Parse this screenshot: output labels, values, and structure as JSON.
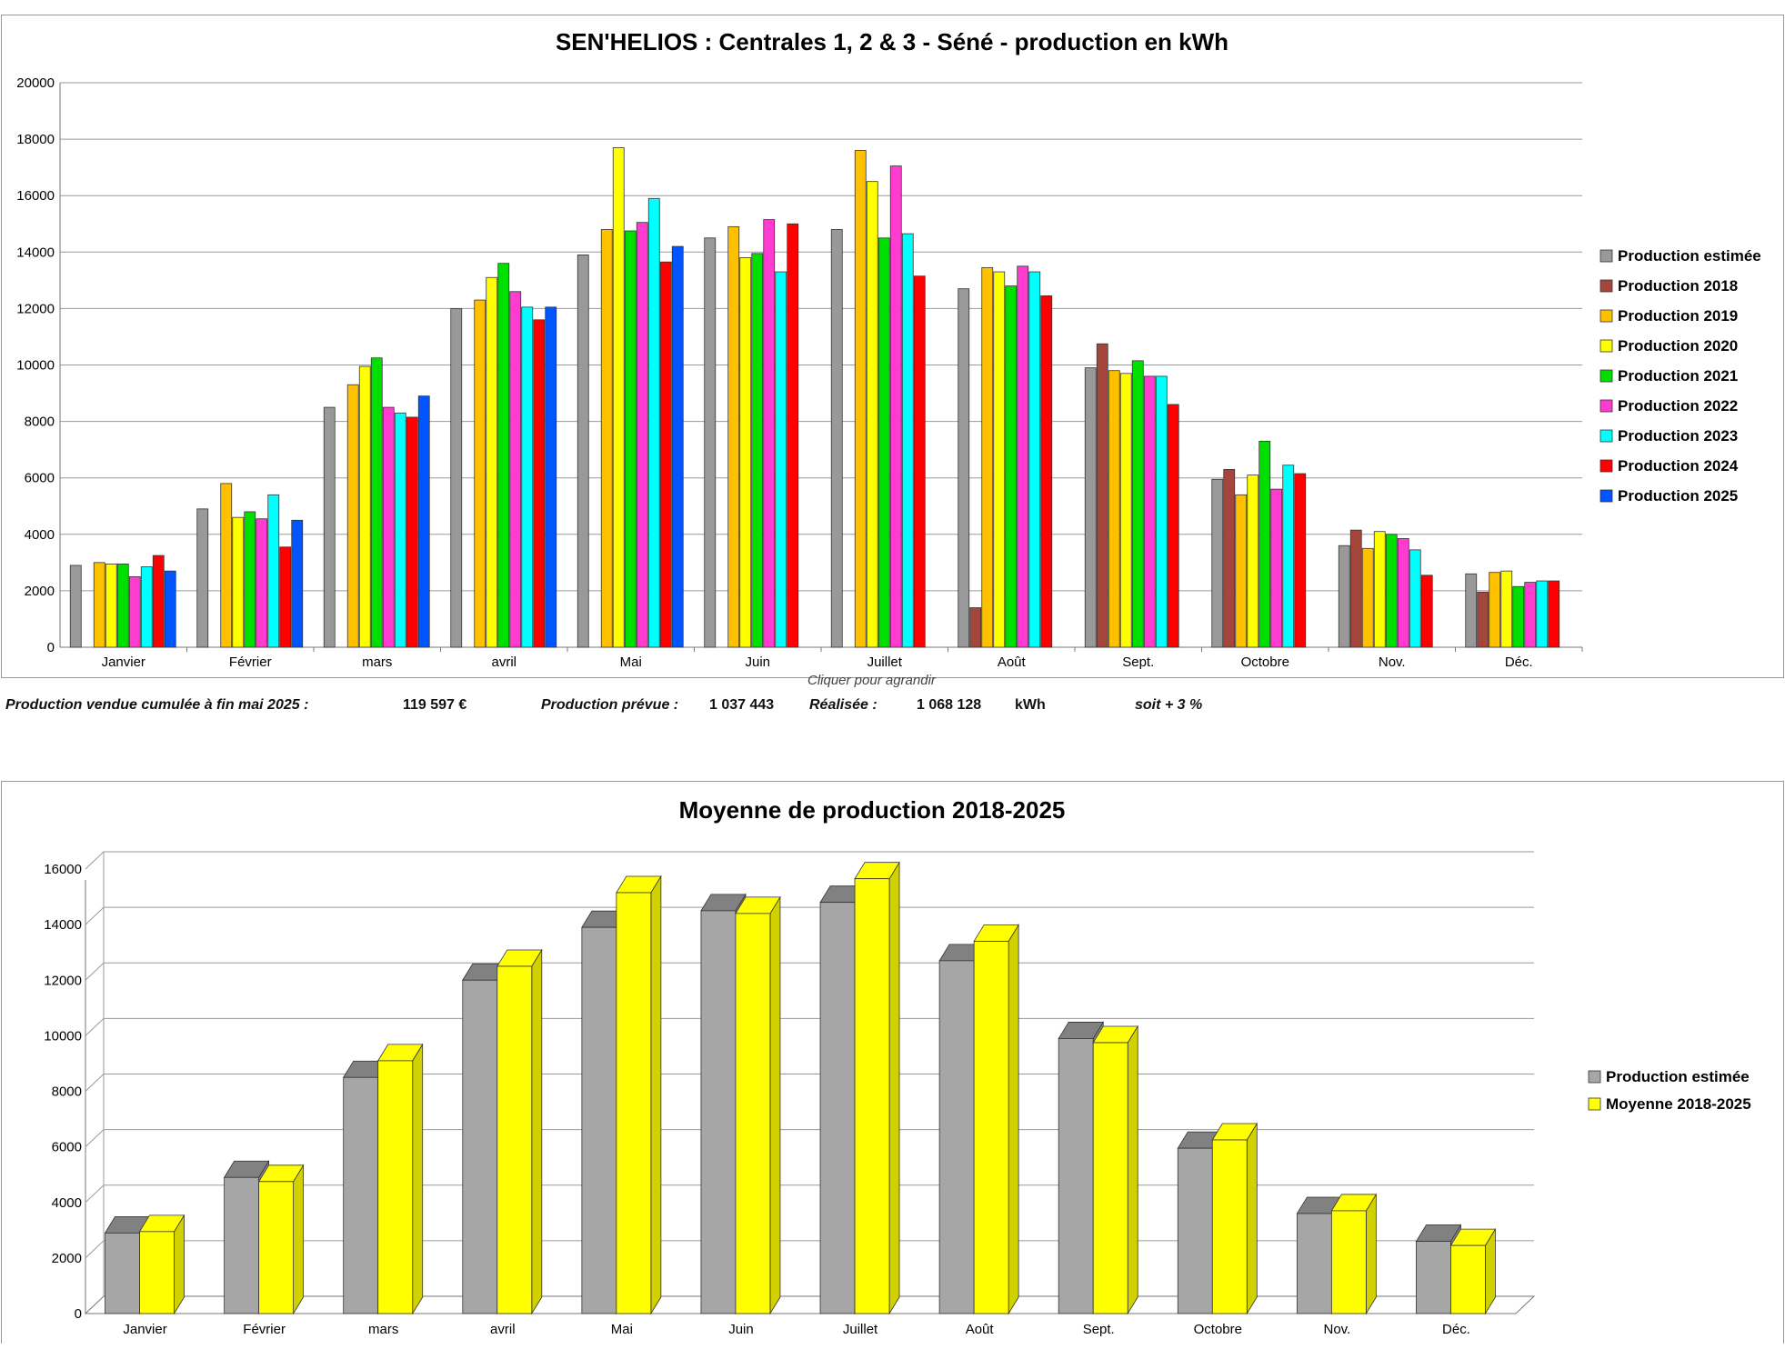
{
  "chart_data": [
    {
      "type": "bar",
      "title": "SEN'HELIOS : Centrales 1, 2 & 3 - Séné - production en kWh",
      "xlabel": "",
      "ylabel": "",
      "categories": [
        "Janvier",
        "Février",
        "mars",
        "avril",
        "Mai",
        "Juin",
        "Juillet",
        "Août",
        "Sept.",
        "Octobre",
        "Nov.",
        "Déc."
      ],
      "ylim": [
        0,
        20000
      ],
      "yticks": [
        0,
        2000,
        4000,
        6000,
        8000,
        10000,
        12000,
        14000,
        16000,
        18000,
        20000
      ],
      "grid": true,
      "legend_position": "right",
      "series": [
        {
          "name": "Production estimée",
          "color": "#999999",
          "values": [
            2900,
            4900,
            8500,
            12000,
            13900,
            14500,
            14800,
            12700,
            9900,
            5950,
            3600,
            2600
          ]
        },
        {
          "name": "Production 2018",
          "color": "#a5463c",
          "values": [
            null,
            null,
            null,
            null,
            null,
            null,
            null,
            1400,
            10750,
            6300,
            4150,
            1950
          ]
        },
        {
          "name": "Production 2019",
          "color": "#ffc000",
          "values": [
            3000,
            5800,
            9300,
            12300,
            14800,
            14900,
            17600,
            13450,
            9800,
            5400,
            3500,
            2650
          ]
        },
        {
          "name": "Production 2020",
          "color": "#ffff00",
          "values": [
            2950,
            4600,
            9950,
            13100,
            17700,
            13800,
            16500,
            13300,
            9700,
            6100,
            4100,
            2700
          ]
        },
        {
          "name": "Production 2021",
          "color": "#00e000",
          "values": [
            2950,
            4800,
            10250,
            13600,
            14750,
            13950,
            14500,
            12800,
            10150,
            7300,
            4000,
            2150
          ]
        },
        {
          "name": "Production 2022",
          "color": "#ff3ccf",
          "values": [
            2500,
            4550,
            8500,
            12600,
            15050,
            15150,
            17050,
            13500,
            9600,
            5600,
            3850,
            2300
          ]
        },
        {
          "name": "Production 2023",
          "color": "#00ffff",
          "values": [
            2850,
            5400,
            8300,
            12050,
            15900,
            13300,
            14650,
            13300,
            9600,
            6450,
            3450,
            2350
          ]
        },
        {
          "name": "Production 2024",
          "color": "#ff0000",
          "values": [
            3250,
            3550,
            8150,
            11600,
            13650,
            15000,
            13150,
            12450,
            8600,
            6150,
            2550,
            2350
          ]
        },
        {
          "name": "Production 2025",
          "color": "#0055ff",
          "values": [
            2700,
            4500,
            8900,
            12050,
            14200,
            null,
            null,
            null,
            null,
            null,
            null,
            null
          ]
        }
      ]
    },
    {
      "type": "bar",
      "title": "Moyenne de production 2018-2025",
      "xlabel": "",
      "ylabel": "",
      "categories": [
        "Janvier",
        "Février",
        "mars",
        "avril",
        "Mai",
        "Juin",
        "Juillet",
        "Août",
        "Sept.",
        "Octobre",
        "Nov.",
        "Déc."
      ],
      "ylim": [
        0,
        16000
      ],
      "yticks": [
        0,
        2000,
        4000,
        6000,
        8000,
        10000,
        12000,
        14000,
        16000
      ],
      "grid": true,
      "style": "3d",
      "legend_position": "right",
      "series": [
        {
          "name": "Production estimée",
          "color": "#a6a6a6",
          "values": [
            2900,
            4900,
            8500,
            12000,
            13900,
            14500,
            14800,
            12700,
            9900,
            5950,
            3600,
            2600
          ]
        },
        {
          "name": "Moyenne 2018-2025",
          "color": "#ffff00",
          "values": [
            2950,
            4750,
            9100,
            12500,
            15150,
            14400,
            15650,
            13400,
            9750,
            6250,
            3700,
            2450
          ]
        }
      ]
    }
  ],
  "hint": "Cliquer pour agrandir",
  "summary": {
    "cumul_label": "Production vendue cumulée à fin mai 2025 :",
    "cumul_value": "119 597 €",
    "prevue_label": "Production prévue :",
    "prevue_value": "1 037 443",
    "realisee_label": "Réalisée :",
    "realisee_value": "1 068 128",
    "unit": "kWh",
    "delta": "soit + 3 %"
  }
}
